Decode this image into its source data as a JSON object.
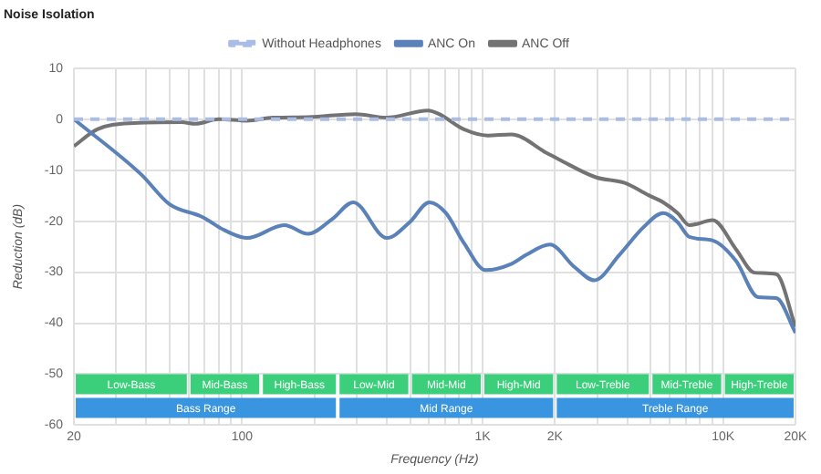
{
  "chart_data": {
    "type": "line",
    "title": "Noise Isolation",
    "xlabel": "Frequency (Hz)",
    "ylabel": "Reduction (dB)",
    "log": "x",
    "grid": true,
    "legend": "top",
    "marker": "none",
    "xlim": [
      20,
      20000
    ],
    "ylim": [
      -60,
      10
    ],
    "xticks": [
      {
        "value": 20,
        "label": "20"
      },
      {
        "value": 30,
        "label": null
      },
      {
        "value": 40,
        "label": null
      },
      {
        "value": 50,
        "label": null
      },
      {
        "value": 60,
        "label": null
      },
      {
        "value": 70,
        "label": null
      },
      {
        "value": 80,
        "label": null
      },
      {
        "value": 90,
        "label": null
      },
      {
        "value": 100,
        "label": "100"
      },
      {
        "value": 200,
        "label": null
      },
      {
        "value": 300,
        "label": null
      },
      {
        "value": 400,
        "label": null
      },
      {
        "value": 500,
        "label": null
      },
      {
        "value": 600,
        "label": null
      },
      {
        "value": 700,
        "label": null
      },
      {
        "value": 800,
        "label": null
      },
      {
        "value": 900,
        "label": null
      },
      {
        "value": 1000,
        "label": "1K"
      },
      {
        "value": 2000,
        "label": "2K"
      },
      {
        "value": 3000,
        "label": null
      },
      {
        "value": 4000,
        "label": null
      },
      {
        "value": 5000,
        "label": null
      },
      {
        "value": 6000,
        "label": null
      },
      {
        "value": 7000,
        "label": null
      },
      {
        "value": 8000,
        "label": null
      },
      {
        "value": 9000,
        "label": null
      },
      {
        "value": 10000,
        "label": "10K"
      },
      {
        "value": 20000,
        "label": "20K"
      }
    ],
    "yticks": [
      10,
      0,
      -10,
      -20,
      -30,
      -40,
      -50,
      -60
    ],
    "series": [
      {
        "name": "Without Headphones",
        "color": "#a9bde6",
        "line_style": "dashed",
        "x": [
          20,
          20000
        ],
        "values": [
          0,
          0
        ]
      },
      {
        "name": "ANC On",
        "color": "#5b82b8",
        "line_style": "solid",
        "x": [
          20,
          38,
          50,
          67,
          71,
          84,
          105,
          150,
          188,
          237,
          290,
          400,
          498,
          601,
          704,
          837,
          1030,
          1316,
          1520,
          1907,
          2413,
          2917,
          3708,
          4643,
          5640,
          6470,
          7250,
          9060,
          11320,
          13980,
          16650,
          20000
        ],
        "values": [
          0,
          -10.8,
          -16.7,
          -19,
          -19.6,
          -21.7,
          -23.3,
          -20.8,
          -22.5,
          -19.6,
          -16.3,
          -23.3,
          -20.2,
          -16.3,
          -18.4,
          -24.3,
          -29.6,
          -28.4,
          -26.6,
          -24.6,
          -29,
          -31.6,
          -26.6,
          -21.3,
          -18.4,
          -20.2,
          -23.1,
          -23.8,
          -27.8,
          -34.9,
          -35.1,
          -41.9
        ]
      },
      {
        "name": "ANC Off",
        "color": "#737373",
        "line_style": "solid",
        "x": [
          20,
          25,
          34,
          56,
          64,
          80,
          105,
          134,
          188,
          297,
          398,
          593,
          660,
          837,
          1050,
          1316,
          1860,
          2080,
          2960,
          3900,
          4900,
          5640,
          6470,
          7250,
          9060,
          11320,
          13500,
          16650,
          20000
        ],
        "values": [
          -5.3,
          -2,
          -0.8,
          -0.6,
          -0.9,
          0,
          -0.3,
          0.3,
          0.4,
          1,
          0.3,
          1.7,
          1,
          -2,
          -3.2,
          -3,
          -6.7,
          -7.9,
          -11.4,
          -12.5,
          -14.9,
          -16.3,
          -18.4,
          -20.8,
          -19.8,
          -25.5,
          -30.1,
          -30.4,
          -40.7
        ]
      }
    ],
    "bands": [
      {
        "axis": "x",
        "from": 20,
        "to": 60,
        "label": "Low-Bass",
        "color": "#3ccf7b"
      },
      {
        "axis": "x",
        "from": 60,
        "to": 120,
        "label": "Mid-Bass",
        "color": "#3ccf7b"
      },
      {
        "axis": "x",
        "from": 120,
        "to": 250,
        "label": "High-Bass",
        "color": "#3ccf7b"
      },
      {
        "axis": "x",
        "from": 250,
        "to": 500,
        "label": "Low-Mid",
        "color": "#3ccf7b"
      },
      {
        "axis": "x",
        "from": 500,
        "to": 1000,
        "label": "Mid-Mid",
        "color": "#3ccf7b"
      },
      {
        "axis": "x",
        "from": 1000,
        "to": 2000,
        "label": "High-Mid",
        "color": "#3ccf7b"
      },
      {
        "axis": "x",
        "from": 2000,
        "to": 5000,
        "label": "Low-Treble",
        "color": "#3ccf7b"
      },
      {
        "axis": "x",
        "from": 5000,
        "to": 10000,
        "label": "Mid-Treble",
        "color": "#3ccf7b"
      },
      {
        "axis": "x",
        "from": 10000,
        "to": 20000,
        "label": "High-Treble",
        "color": "#3ccf7b"
      },
      {
        "axis": "x",
        "from": 20,
        "to": 250,
        "label": "Bass Range",
        "color": "#3a95e0"
      },
      {
        "axis": "x",
        "from": 250,
        "to": 2000,
        "label": "Mid Range",
        "color": "#3a95e0"
      },
      {
        "axis": "x",
        "from": 2000,
        "to": 20000,
        "label": "Treble Range",
        "color": "#3a95e0"
      }
    ]
  }
}
